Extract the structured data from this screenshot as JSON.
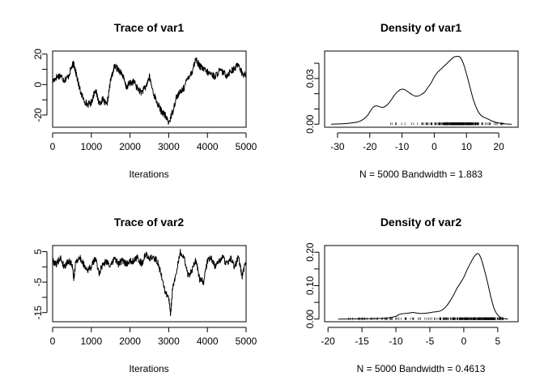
{
  "chart_data": [
    {
      "type": "line",
      "title": "Trace of var1",
      "xlabel": "Iterations",
      "ylabel": "",
      "xlim": [
        0,
        5000
      ],
      "ylim": [
        -28,
        22
      ],
      "xticks": [
        0,
        1000,
        2000,
        3000,
        4000,
        5000
      ],
      "yticks": [
        -20,
        0,
        20
      ],
      "minor_yticks": [
        -10,
        10
      ],
      "series": [
        {
          "x": [
            0,
            100,
            200,
            300,
            400,
            500,
            550,
            600,
            700,
            800,
            900,
            1000,
            1100,
            1200,
            1300,
            1400,
            1500,
            1600,
            1700,
            1800,
            1900,
            2000,
            2100,
            2200,
            2300,
            2400,
            2500,
            2600,
            2700,
            2800,
            2900,
            3000,
            3100,
            3200,
            3300,
            3400,
            3500,
            3600,
            3700,
            3800,
            3900,
            4000,
            4100,
            4200,
            4300,
            4400,
            4500,
            4600,
            4700,
            4800,
            4900,
            5000
          ],
          "y": [
            2,
            5,
            6,
            3,
            5,
            12,
            14,
            8,
            -3,
            -10,
            -13,
            -12,
            -3,
            -12,
            -10,
            -14,
            3,
            12,
            10,
            7,
            -2,
            1,
            2,
            -3,
            -5,
            -2,
            5,
            -5,
            -12,
            -17,
            -20,
            -25,
            -18,
            -8,
            -5,
            -2,
            5,
            8,
            17,
            12,
            10,
            8,
            7,
            5,
            9,
            8,
            6,
            9,
            10,
            14,
            7,
            6
          ]
        }
      ]
    },
    {
      "type": "area",
      "title": "Density of var1",
      "xlabel": "N = 5000   Bandwidth = 1.883",
      "ylabel": "",
      "xlim": [
        -34,
        26
      ],
      "ylim": [
        -0.002,
        0.048
      ],
      "xticks": [
        -30,
        -20,
        -10,
        0,
        10,
        20
      ],
      "yticks": [
        0.0,
        0.03
      ],
      "minor_yticks": [
        0.01,
        0.02,
        0.04
      ],
      "ytick_labels": [
        "0.00",
        "0.03"
      ],
      "rug_range": [
        -15,
        22
      ],
      "series": [
        {
          "x": [
            -32,
            -28,
            -25,
            -23,
            -21,
            -20,
            -19,
            -18,
            -17,
            -16,
            -15,
            -14,
            -13,
            -12,
            -11,
            -10,
            -9,
            -8,
            -7,
            -6,
            -5,
            -4,
            -3,
            -2,
            -1,
            0,
            1,
            2,
            3,
            4,
            5,
            6,
            7,
            8,
            9,
            10,
            11,
            12,
            13,
            14,
            15,
            16,
            17,
            18,
            20,
            22,
            24
          ],
          "y": [
            0,
            0.0003,
            0.001,
            0.002,
            0.005,
            0.008,
            0.011,
            0.012,
            0.0115,
            0.011,
            0.012,
            0.014,
            0.017,
            0.02,
            0.022,
            0.023,
            0.0225,
            0.021,
            0.0195,
            0.0185,
            0.0185,
            0.0195,
            0.021,
            0.024,
            0.027,
            0.031,
            0.034,
            0.036,
            0.038,
            0.04,
            0.042,
            0.044,
            0.0445,
            0.044,
            0.04,
            0.033,
            0.025,
            0.017,
            0.011,
            0.007,
            0.005,
            0.004,
            0.003,
            0.002,
            0.0008,
            0.0002,
            0
          ]
        }
      ]
    },
    {
      "type": "line",
      "title": "Trace of var2",
      "xlabel": "Iterations",
      "ylabel": "",
      "xlim": [
        0,
        5000
      ],
      "ylim": [
        -18,
        7
      ],
      "xticks": [
        0,
        1000,
        2000,
        3000,
        4000,
        5000
      ],
      "yticks": [
        -15,
        -5,
        5
      ],
      "minor_yticks": [
        -10,
        0
      ],
      "series": [
        {
          "x": [
            0,
            100,
            200,
            300,
            400,
            500,
            550,
            600,
            700,
            800,
            900,
            1000,
            1100,
            1200,
            1300,
            1400,
            1500,
            1600,
            1700,
            1800,
            1900,
            2000,
            2100,
            2200,
            2300,
            2400,
            2500,
            2600,
            2700,
            2800,
            2900,
            3000,
            3050,
            3100,
            3200,
            3300,
            3400,
            3500,
            3600,
            3700,
            3800,
            3900,
            4000,
            4100,
            4200,
            4300,
            4400,
            4500,
            4600,
            4700,
            4800,
            4900,
            5000
          ],
          "y": [
            2,
            1,
            3,
            0,
            2,
            1,
            -4,
            2,
            3,
            1,
            -1,
            0,
            3,
            -2,
            1,
            2,
            0,
            3,
            1,
            2,
            1,
            2,
            2,
            3,
            1,
            4,
            3,
            3,
            2,
            -2,
            -8,
            -10,
            -16,
            -7,
            -2,
            5,
            3,
            -3,
            -1,
            2,
            -4,
            -5,
            2,
            3,
            0,
            2,
            3,
            1,
            3,
            0,
            3,
            -3,
            2
          ]
        }
      ]
    },
    {
      "type": "area",
      "title": "Density of var2",
      "xlabel": "N = 5000   Bandwidth = 0.4613",
      "ylabel": "",
      "xlim": [
        -20.5,
        8
      ],
      "ylim": [
        -0.008,
        0.22
      ],
      "xticks": [
        -20,
        -15,
        -10,
        -5,
        0,
        5
      ],
      "yticks": [
        0.0,
        0.1,
        0.2
      ],
      "minor_yticks": [
        0.05,
        0.15
      ],
      "ytick_labels": [
        "0.00",
        "0.10",
        "0.20"
      ],
      "rug_range": [
        -17,
        6
      ],
      "series": [
        {
          "x": [
            -18.5,
            -16,
            -14,
            -12,
            -11,
            -10,
            -9.5,
            -9,
            -8.5,
            -8,
            -7.5,
            -7,
            -6.5,
            -6,
            -5,
            -4.5,
            -4,
            -3.5,
            -3,
            -2.5,
            -2,
            -1.5,
            -1,
            -0.5,
            0,
            0.5,
            1,
            1.5,
            2,
            2.3,
            2.6,
            3,
            3.5,
            4,
            4.5,
            5,
            5.5,
            6,
            6.5
          ],
          "y": [
            0,
            0.0005,
            0.001,
            0.002,
            0.004,
            0.008,
            0.014,
            0.016,
            0.017,
            0.018,
            0.02,
            0.018,
            0.017,
            0.017,
            0.019,
            0.021,
            0.022,
            0.024,
            0.03,
            0.04,
            0.055,
            0.072,
            0.092,
            0.108,
            0.125,
            0.148,
            0.168,
            0.186,
            0.196,
            0.192,
            0.178,
            0.15,
            0.11,
            0.065,
            0.03,
            0.012,
            0.004,
            0.001,
            0
          ]
        }
      ]
    }
  ]
}
